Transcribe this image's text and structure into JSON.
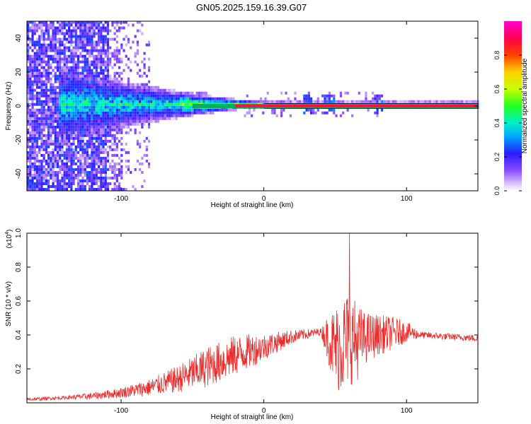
{
  "title": "GN05.2025.159.16.39.G07",
  "chart_data": [
    {
      "type": "heatmap",
      "xlabel": "Height of straight line (km)",
      "ylabel": "Frequency (Hz)",
      "xlim": [
        -166,
        150
      ],
      "ylim": [
        -50,
        50
      ],
      "xticks": [
        -100,
        0,
        100
      ],
      "yticks": [
        -40,
        -20,
        0,
        20,
        40
      ],
      "colorbar": {
        "label": "Normalized spectral amplitude",
        "range": [
          0,
          1
        ],
        "ticks": [
          "0.0",
          "0.2",
          "0.4",
          "0.6",
          "0.8"
        ]
      },
      "features": {
        "broadband_noise_x": [
          -166,
          -80
        ],
        "signal_band_x": [
          -140,
          150
        ],
        "signal_frequency_hz": 0,
        "burst_near_x": [
          30,
          45,
          80
        ]
      }
    },
    {
      "type": "line",
      "xlabel": "Height of straight line (km)",
      "ylabel": "SNR (10 * v/v)",
      "y_multiplier": "(x10",
      "y_multiplier_exp": "4",
      "y_multiplier_close": ")",
      "xlim": [
        -166,
        150
      ],
      "ylim": [
        0,
        1.0
      ],
      "xticks": [
        -100,
        0,
        100
      ],
      "yticks": [
        "0.2",
        "0.4",
        "0.6",
        "0.8",
        "1.0"
      ],
      "series": [
        {
          "color": "#ee2b2b",
          "envelope_x": [
            -166,
            -140,
            -120,
            -100,
            -80,
            -60,
            -40,
            -20,
            0,
            20,
            40,
            45,
            50,
            55,
            60,
            65,
            70,
            80,
            90,
            100,
            110,
            130,
            150
          ],
          "envelope_mean": [
            0.02,
            0.03,
            0.04,
            0.06,
            0.09,
            0.14,
            0.21,
            0.28,
            0.33,
            0.39,
            0.42,
            0.38,
            0.32,
            0.35,
            0.38,
            0.36,
            0.38,
            0.4,
            0.41,
            0.42,
            0.4,
            0.39,
            0.38
          ],
          "envelope_amp": [
            0.01,
            0.01,
            0.02,
            0.03,
            0.05,
            0.08,
            0.12,
            0.12,
            0.08,
            0.04,
            0.02,
            0.14,
            0.25,
            0.3,
            0.28,
            0.24,
            0.16,
            0.12,
            0.1,
            0.06,
            0.02,
            0.02,
            0.02
          ],
          "peak": {
            "x": 60,
            "y": 1.0
          }
        }
      ]
    }
  ]
}
